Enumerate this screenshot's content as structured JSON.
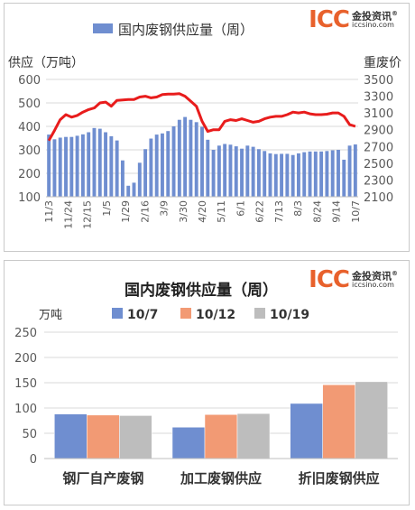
{
  "logo": {
    "mark": "ICC",
    "name": "金投资讯",
    "reg": "®",
    "url": "iccsino.com"
  },
  "colors": {
    "bar1": "#6f8ed0",
    "line1": "#e81c1c",
    "s1": "#6f8ed0",
    "s2": "#f29a74",
    "s3": "#bdbdbd",
    "grid": "#d9d9d9",
    "axis": "#595959"
  },
  "chart_data": [
    {
      "type": "bar+line",
      "title": "国内废钢供应量（周）",
      "legend": "top-center",
      "left_axis_label": "供应（万吨）",
      "right_axis_label": "重废价",
      "ylim": [
        100,
        600
      ],
      "yticks": [
        100,
        200,
        300,
        400,
        500,
        600
      ],
      "y2lim": [
        2100,
        3500
      ],
      "y2ticks": [
        2100,
        2300,
        2500,
        2700,
        2900,
        3100,
        3300,
        3500
      ],
      "grid": true,
      "xticklabels": [
        "11/3",
        "11/24",
        "12/15",
        "1/5",
        "1/29",
        "2/16",
        "3/9",
        "3/30",
        "4/20",
        "5/11",
        "6/1",
        "6/22",
        "7/13",
        "8/3",
        "8/24",
        "9/14",
        "10/7"
      ],
      "series": [
        {
          "name": "国内废钢供应量（周）",
          "kind": "bar",
          "values": [
            365,
            345,
            352,
            355,
            355,
            360,
            366,
            375,
            393,
            390,
            375,
            358,
            340,
            255,
            147,
            160,
            245,
            303,
            348,
            365,
            370,
            380,
            400,
            428,
            440,
            428,
            418,
            398,
            343,
            300,
            318,
            325,
            322,
            315,
            305,
            318,
            313,
            303,
            295,
            285,
            282,
            283,
            283,
            278,
            285,
            290,
            293,
            293,
            293,
            295,
            298,
            300,
            258,
            318,
            323
          ]
        },
        {
          "name": "",
          "kind": "line",
          "axis": "right",
          "values": [
            2770,
            2890,
            3020,
            3080,
            3050,
            3070,
            3110,
            3140,
            3160,
            3220,
            3230,
            3180,
            3250,
            3255,
            3260,
            3260,
            3290,
            3300,
            3280,
            3290,
            3320,
            3325,
            3325,
            3330,
            3300,
            3240,
            3180,
            3000,
            2880,
            2900,
            2900,
            3000,
            3020,
            3010,
            3030,
            3010,
            2990,
            3000,
            3030,
            3050,
            3060,
            3060,
            3080,
            3110,
            3100,
            3110,
            3090,
            3080,
            3080,
            3085,
            3100,
            3100,
            3060,
            2960,
            2940
          ]
        }
      ]
    },
    {
      "type": "bar",
      "title": "国内废钢供应量（周）",
      "ylabel": "万吨",
      "legend": "top-center",
      "ylim": [
        0,
        250
      ],
      "yticks": [
        0,
        50,
        100,
        150,
        200,
        250
      ],
      "grid": true,
      "categories": [
        "钢厂自产废钢",
        "加工废钢供应",
        "折旧废钢供应"
      ],
      "series": [
        {
          "name": "10/7",
          "values": [
            88,
            62,
            109
          ]
        },
        {
          "name": "10/12",
          "values": [
            86,
            87,
            146
          ]
        },
        {
          "name": "10/19",
          "values": [
            85,
            89,
            152
          ]
        }
      ]
    }
  ]
}
